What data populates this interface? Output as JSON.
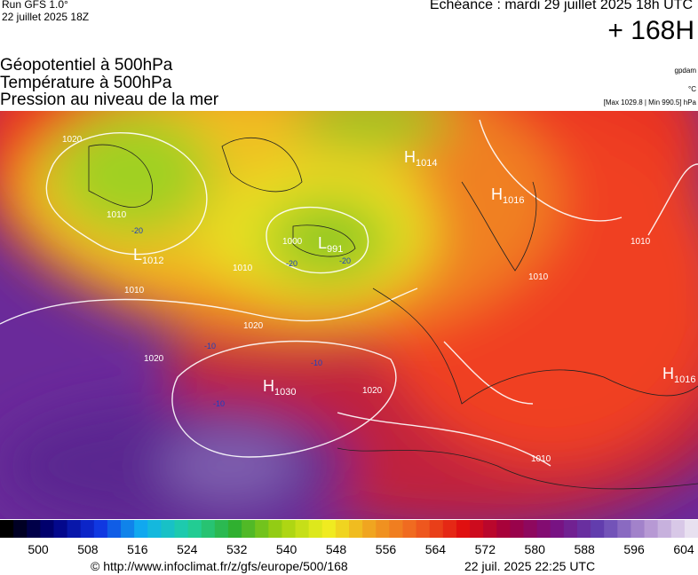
{
  "header": {
    "run": "Run GFS 1.0°",
    "date": "22 juillet 2025 18Z",
    "echeance": "Echéance : mardi 29 juillet 2025 18h UTC",
    "lead": "+ 168H"
  },
  "titles": [
    "Géopotentiel à 500hPa",
    "Température à 500hPa",
    "Pression au niveau de la mer"
  ],
  "units": {
    "geopotential": "gpdam",
    "temperature": "°C",
    "pressure": "[Max 1029.8 | Min 990.5] hPa"
  },
  "map": {
    "centers": [
      {
        "letter": "H",
        "value": 1030
      },
      {
        "letter": "L",
        "value": 1012
      },
      {
        "letter": "H",
        "value": 1014
      },
      {
        "letter": "H",
        "value": 1016
      },
      {
        "letter": "H",
        "value": 1016
      },
      {
        "letter": "L",
        "value": 991
      }
    ],
    "isobar_labels": [
      1020,
      1010,
      1010,
      1000,
      1010,
      1020,
      1020,
      1020,
      1010,
      1010,
      1010
    ],
    "temperature_labels": [
      -20,
      -20,
      -10,
      -10,
      -10,
      -20
    ]
  },
  "colorbar": {
    "labels": [
      500,
      508,
      516,
      524,
      532,
      540,
      548,
      556,
      564,
      572,
      580,
      588,
      596,
      604
    ],
    "colors": [
      "#000000",
      "#00007a",
      "#1030e0",
      "#10b0f0",
      "#20d0a0",
      "#30b030",
      "#a0d010",
      "#f0f020",
      "#f0a020",
      "#f06020",
      "#e01010",
      "#a00040",
      "#7a1080",
      "#6040b0",
      "#b090d0",
      "#e8e0f0"
    ]
  },
  "footer": {
    "url": "© http://www.infoclimat.fr/z/gfs/europe/500/168",
    "timestamp": "22 juil. 2025 22:25 UTC"
  }
}
